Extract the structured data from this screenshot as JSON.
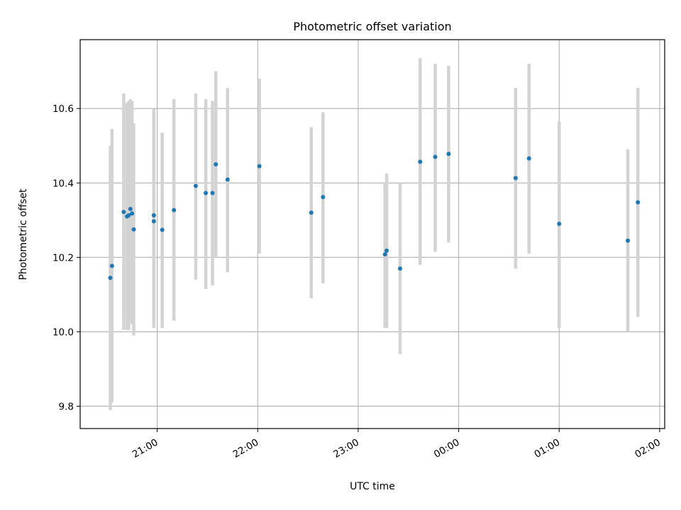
{
  "chart_data": {
    "type": "scatter",
    "title": "Photometric offset variation",
    "xlabel": "UTC time",
    "ylabel": "Photometric offset",
    "xlim": [
      "20:14",
      "02:03"
    ],
    "ylim": [
      9.74,
      10.785
    ],
    "x_ticks": [
      "21:00",
      "22:00",
      "23:00",
      "00:00",
      "01:00",
      "02:00"
    ],
    "y_ticks": [
      "9.8",
      "10.0",
      "10.2",
      "10.4",
      "10.6"
    ],
    "grid": true,
    "colors": {
      "marker": "#1f77b4",
      "errorbar": "#d3d3d3",
      "grid": "#b0b0b0"
    },
    "points": [
      {
        "x": "20:32",
        "y": 10.145,
        "ylow": 9.79,
        "yhigh": 10.5
      },
      {
        "x": "20:33",
        "y": 10.177,
        "ylow": 9.81,
        "yhigh": 10.545
      },
      {
        "x": "20:40",
        "y": 10.322,
        "ylow": 10.005,
        "yhigh": 10.64
      },
      {
        "x": "20:42",
        "y": 10.31,
        "ylow": 10.005,
        "yhigh": 10.615
      },
      {
        "x": "20:43",
        "y": 10.313,
        "ylow": 10.005,
        "yhigh": 10.62
      },
      {
        "x": "20:44",
        "y": 10.33,
        "ylow": 10.03,
        "yhigh": 10.625
      },
      {
        "x": "20:45",
        "y": 10.318,
        "ylow": 10.02,
        "yhigh": 10.62
      },
      {
        "x": "20:46",
        "y": 10.275,
        "ylow": 9.99,
        "yhigh": 10.56
      },
      {
        "x": "20:58",
        "y": 10.297,
        "ylow": 10.01,
        "yhigh": 10.6
      },
      {
        "x": "20:58",
        "y": 10.313,
        "ylow": 10.03,
        "yhigh": 10.595
      },
      {
        "x": "21:03",
        "y": 10.274,
        "ylow": 10.01,
        "yhigh": 10.535
      },
      {
        "x": "21:10",
        "y": 10.327,
        "ylow": 10.03,
        "yhigh": 10.625
      },
      {
        "x": "21:23",
        "y": 10.392,
        "ylow": 10.14,
        "yhigh": 10.64
      },
      {
        "x": "21:29",
        "y": 10.373,
        "ylow": 10.115,
        "yhigh": 10.625
      },
      {
        "x": "21:33",
        "y": 10.373,
        "ylow": 10.125,
        "yhigh": 10.62
      },
      {
        "x": "21:35",
        "y": 10.45,
        "ylow": 10.2,
        "yhigh": 10.7
      },
      {
        "x": "21:42",
        "y": 10.409,
        "ylow": 10.16,
        "yhigh": 10.655
      },
      {
        "x": "22:01",
        "y": 10.445,
        "ylow": 10.21,
        "yhigh": 10.68
      },
      {
        "x": "22:32",
        "y": 10.32,
        "ylow": 10.09,
        "yhigh": 10.55
      },
      {
        "x": "22:39",
        "y": 10.362,
        "ylow": 10.13,
        "yhigh": 10.59
      },
      {
        "x": "23:16",
        "y": 10.208,
        "ylow": 10.01,
        "yhigh": 10.4
      },
      {
        "x": "23:17",
        "y": 10.218,
        "ylow": 10.01,
        "yhigh": 10.425
      },
      {
        "x": "23:25",
        "y": 10.17,
        "ylow": 9.94,
        "yhigh": 10.4
      },
      {
        "x": "23:37",
        "y": 10.457,
        "ylow": 10.18,
        "yhigh": 10.735
      },
      {
        "x": "23:46",
        "y": 10.47,
        "ylow": 10.215,
        "yhigh": 10.72
      },
      {
        "x": "23:54",
        "y": 10.478,
        "ylow": 10.24,
        "yhigh": 10.715
      },
      {
        "x": "00:34",
        "y": 10.413,
        "ylow": 10.17,
        "yhigh": 10.655
      },
      {
        "x": "00:42",
        "y": 10.466,
        "ylow": 10.21,
        "yhigh": 10.72
      },
      {
        "x": "01:00",
        "y": 10.29,
        "ylow": 10.01,
        "yhigh": 10.565
      },
      {
        "x": "01:41",
        "y": 10.245,
        "ylow": 10.0,
        "yhigh": 10.49
      },
      {
        "x": "01:47",
        "y": 10.348,
        "ylow": 10.04,
        "yhigh": 10.655
      }
    ]
  }
}
